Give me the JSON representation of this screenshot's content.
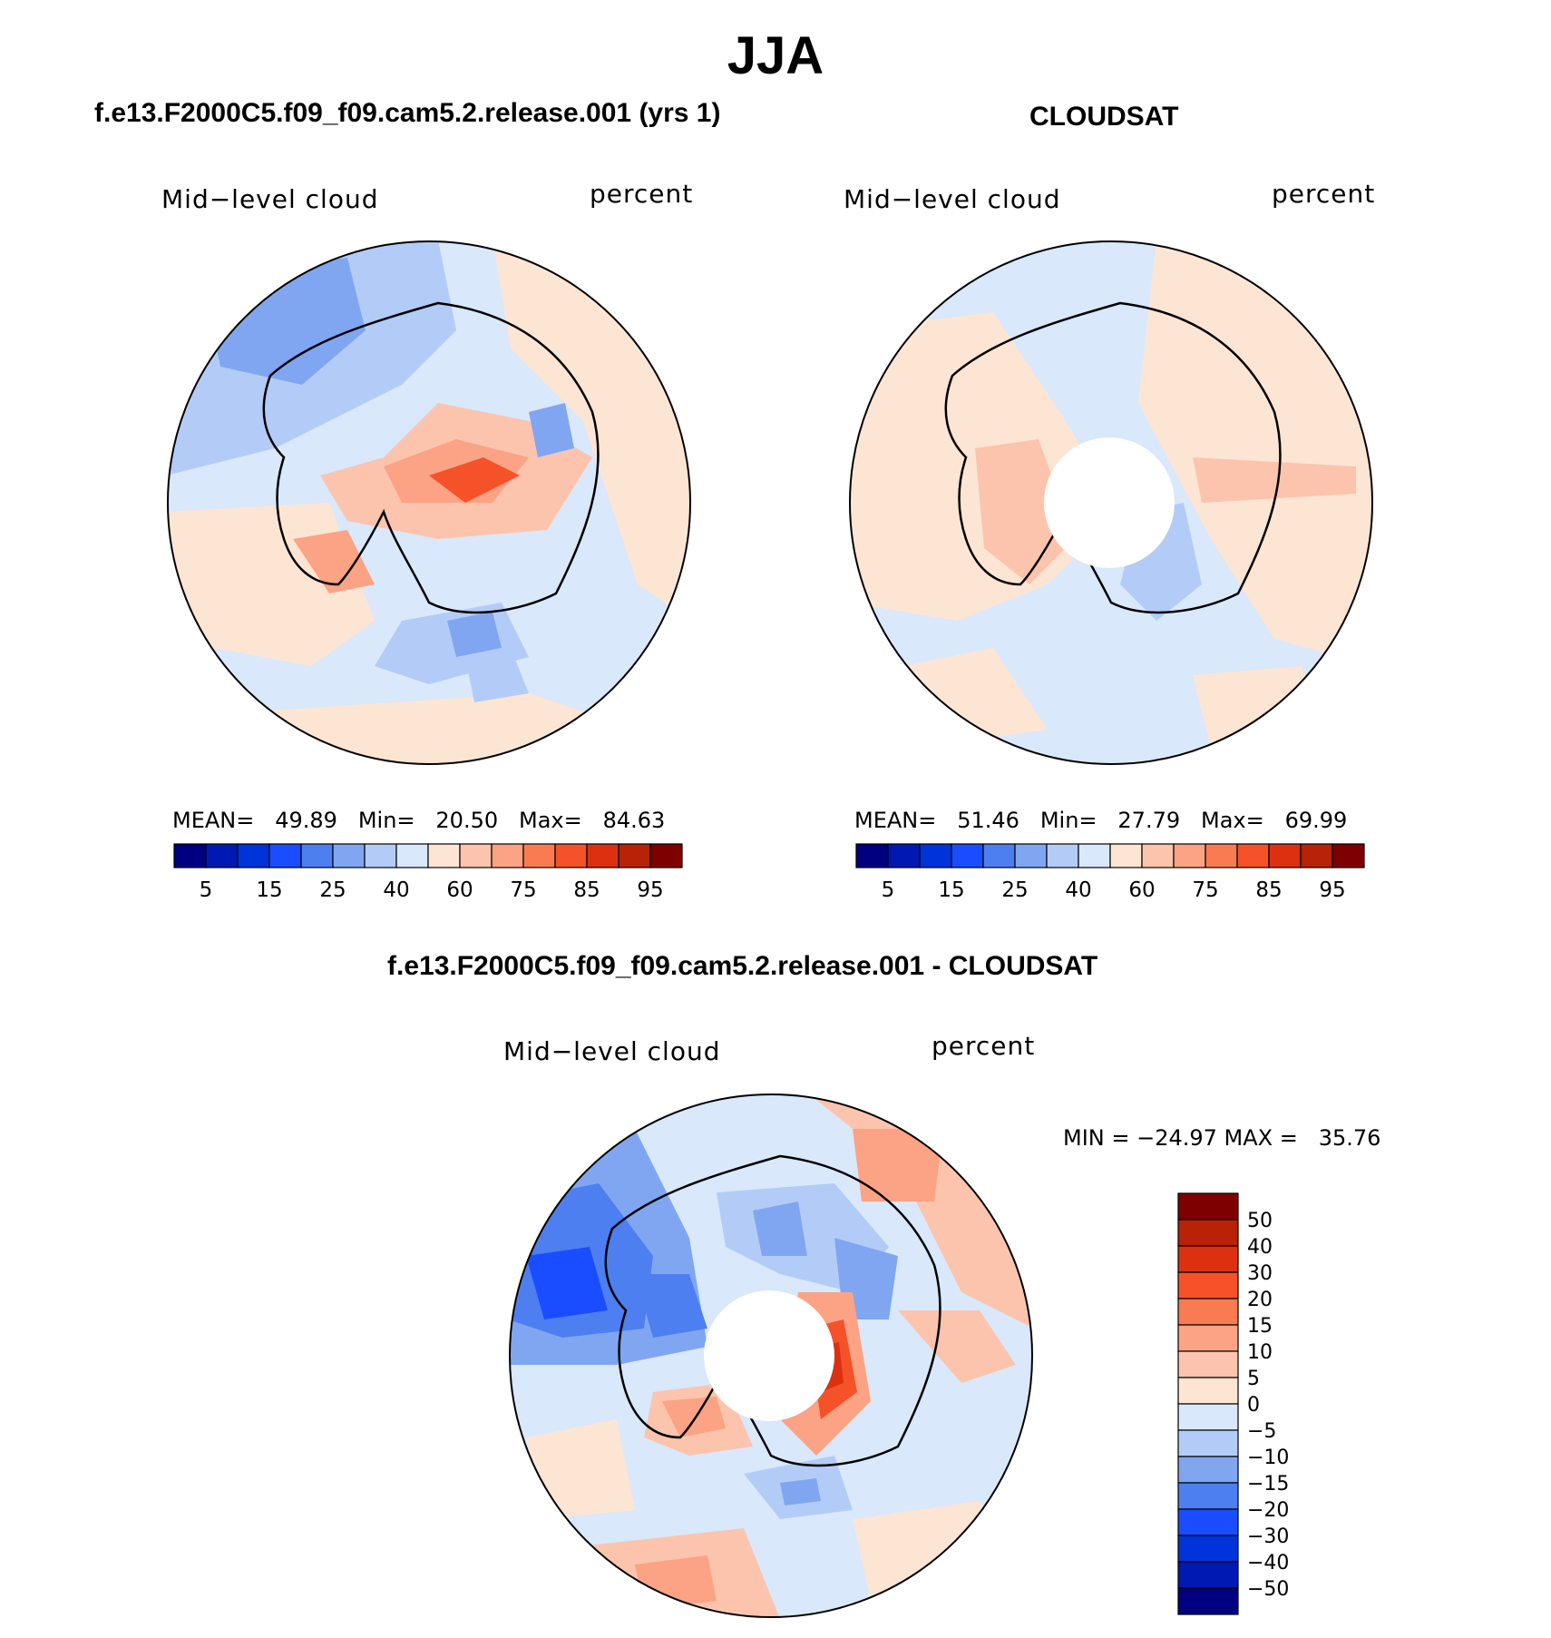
{
  "title": "JJA",
  "panels": [
    {
      "id": "model",
      "heading": "f.e13.F2000C5.f09_f09.cam5.2.release.001 (yrs 1)",
      "variable": "Mid−level cloud",
      "units": "percent",
      "stats": "MEAN=   49.89   Min=   20.50   Max=   84.63",
      "pole_hole": false
    },
    {
      "id": "obs",
      "heading": "CLOUDSAT",
      "variable": "Mid−level cloud",
      "units": "percent",
      "stats": "MEAN=   51.46   Min=   27.79   Max=   69.99",
      "pole_hole": true
    }
  ],
  "abs_colorbar": {
    "colors": [
      "#000080",
      "#0019b3",
      "#0033d9",
      "#1a4dff",
      "#4d7ff0",
      "#80a6f2",
      "#b3ccf7",
      "#d9e8fb",
      "#fde5d4",
      "#fcc4ad",
      "#fba384",
      "#fa7b51",
      "#f5522a",
      "#dc3011",
      "#b82207",
      "#7f0000"
    ],
    "labels": [
      "5",
      "15",
      "25",
      "40",
      "60",
      "75",
      "85",
      "95"
    ]
  },
  "diff_panel": {
    "heading": "f.e13.F2000C5.f09_f09.cam5.2.release.001 - CLOUDSAT",
    "variable": "Mid−level cloud",
    "units": "percent",
    "minmax": "MIN = −24.97 MAX =   35.76"
  },
  "diff_colorbar": {
    "colors": [
      "#7f0000",
      "#b82207",
      "#dc3011",
      "#f5522a",
      "#fa7b51",
      "#fba384",
      "#fcc4ad",
      "#fde5d4",
      "#d9e8fb",
      "#b3ccf7",
      "#80a6f2",
      "#4d7ff0",
      "#1a4dff",
      "#0033d9",
      "#0019b3",
      "#000080"
    ],
    "labels": [
      "50",
      "40",
      "30",
      "20",
      "15",
      "10",
      "5",
      "0",
      "−5",
      "−10",
      "−15",
      "−20",
      "−30",
      "−40",
      "−50"
    ]
  }
}
